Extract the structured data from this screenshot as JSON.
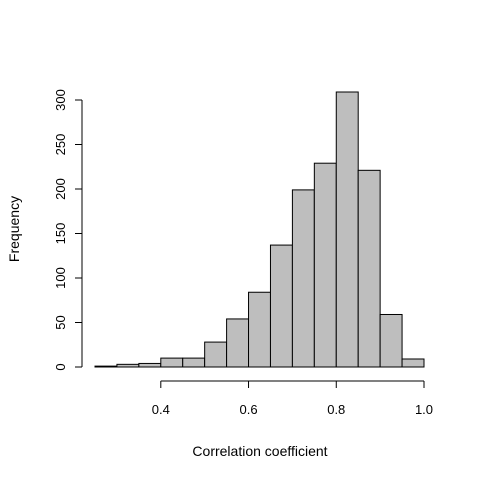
{
  "chart_data": {
    "type": "bar",
    "subtype": "histogram",
    "bin_width": 0.05,
    "bins": [
      {
        "x0": 0.25,
        "x1": 0.3,
        "count": 1
      },
      {
        "x0": 0.3,
        "x1": 0.35,
        "count": 3
      },
      {
        "x0": 0.35,
        "x1": 0.4,
        "count": 4
      },
      {
        "x0": 0.4,
        "x1": 0.45,
        "count": 10
      },
      {
        "x0": 0.45,
        "x1": 0.5,
        "count": 10
      },
      {
        "x0": 0.5,
        "x1": 0.55,
        "count": 28
      },
      {
        "x0": 0.55,
        "x1": 0.6,
        "count": 54
      },
      {
        "x0": 0.6,
        "x1": 0.65,
        "count": 84
      },
      {
        "x0": 0.65,
        "x1": 0.7,
        "count": 137
      },
      {
        "x0": 0.7,
        "x1": 0.75,
        "count": 199
      },
      {
        "x0": 0.75,
        "x1": 0.8,
        "count": 229
      },
      {
        "x0": 0.8,
        "x1": 0.85,
        "count": 309
      },
      {
        "x0": 0.85,
        "x1": 0.9,
        "count": 221
      },
      {
        "x0": 0.9,
        "x1": 0.95,
        "count": 59
      },
      {
        "x0": 0.95,
        "x1": 1.0,
        "count": 9
      }
    ],
    "title": "",
    "xlabel": "Correlation coefficient",
    "ylabel": "Frequency",
    "xlim": [
      0.25,
      1.0
    ],
    "ylim": [
      0,
      309
    ],
    "xticks": [
      0.4,
      0.6,
      0.8,
      1.0
    ],
    "xtick_labels": [
      "0.4",
      "0.6",
      "0.8",
      "1.0"
    ],
    "yticks": [
      0,
      50,
      100,
      150,
      200,
      250,
      300
    ],
    "ytick_labels": [
      "0",
      "50",
      "100",
      "150",
      "200",
      "250",
      "300"
    ],
    "grid": false,
    "legend": "none",
    "bar_color": "#bebebe",
    "edge_color": "#000000"
  }
}
